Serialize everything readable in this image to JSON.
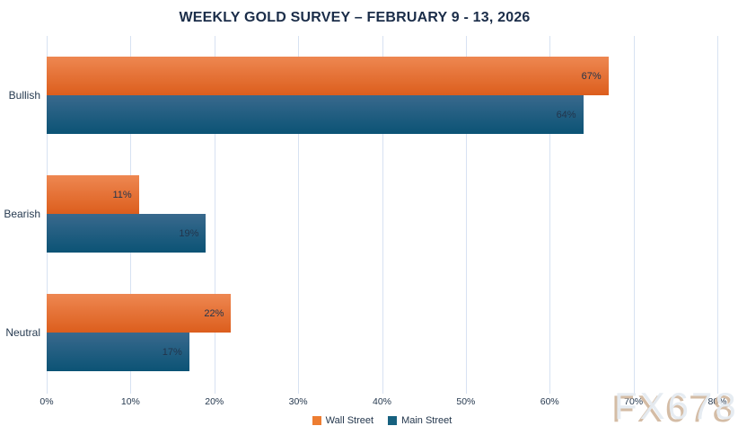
{
  "title": "WEEKLY GOLD SURVEY – FEBRUARY 9 - 13, 2026",
  "watermark": "FX678",
  "colors": {
    "title_text": "#1b2d49",
    "axis_text": "#25384e",
    "gridline": "#d7e2f2",
    "data_label_text": "#22354c",
    "watermark_fill": "#e5ebf1",
    "watermark_shadow": "#ccb095"
  },
  "chart_data": {
    "type": "bar",
    "orientation": "horizontal",
    "title": "WEEKLY GOLD SURVEY – FEBRUARY 9 - 13, 2026",
    "categories": [
      "Bullish",
      "Bearish",
      "Neutral"
    ],
    "series": [
      {
        "name": "Wall Street",
        "values": [
          67,
          11,
          22
        ],
        "color": "#ed7d31",
        "gradient_top": "#ee8751",
        "gradient_bottom": "#dc5e1d"
      },
      {
        "name": "Main Street",
        "values": [
          64,
          19,
          17
        ],
        "color": "#17617f",
        "gradient_top": "#39698d",
        "gradient_bottom": "#0b5375"
      }
    ],
    "value_suffix": "%",
    "data_labels": [
      "67%",
      "64%",
      "11%",
      "19%",
      "22%",
      "17%"
    ],
    "xlim": [
      0,
      80
    ],
    "x_ticks": [
      "0%",
      "10%",
      "20%",
      "30%",
      "40%",
      "50%",
      "60%",
      "70%",
      "80%"
    ],
    "grid": true,
    "legend_position": "bottom"
  },
  "legend": {
    "items": [
      {
        "label": "Wall Street",
        "color": "#ed7d31"
      },
      {
        "label": "Main Street",
        "color": "#17617f"
      }
    ]
  }
}
